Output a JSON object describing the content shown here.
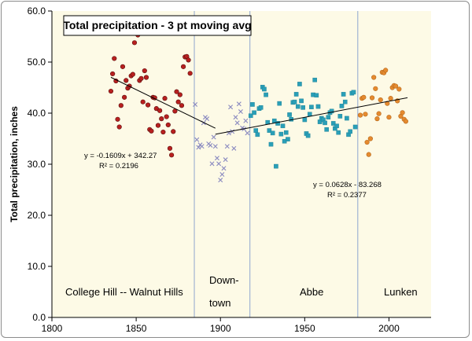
{
  "chart_data": {
    "type": "scatter",
    "title": "Total precipitation - 3 pt moving avg",
    "ylabel": "Total precipitation, inches",
    "xlabel": "",
    "xlim": [
      1800,
      2025
    ],
    "ylim": [
      0,
      60
    ],
    "xticks": [
      1800,
      1850,
      1900,
      1950,
      2000
    ],
    "yticks": [
      "0.0",
      "10.0",
      "20.0",
      "30.0",
      "40.0",
      "50.0",
      "60.0"
    ],
    "grid": false,
    "colors": {
      "plot_background": "#fdfae6",
      "era_divider": "#8ea6cf",
      "trendline": "#000000"
    },
    "eras": [
      {
        "name": "College Hill -- Walnut Hills",
        "start": 1800,
        "end": 1884.5
      },
      {
        "name": "Down-town",
        "start": 1884.5,
        "end": 1917.5
      },
      {
        "name": "Abbe",
        "start": 1917.5,
        "end": 1981.5
      },
      {
        "name": "Lunken",
        "start": 1981.5,
        "end": 2025
      }
    ],
    "era_labels": [
      "College Hill -- Walnut Hills",
      "Down-",
      "town",
      "Abbe",
      "Lunken"
    ],
    "series": [
      {
        "marker": "circle",
        "color": "#b8201f",
        "edge": "#5a0f0f",
        "points": [
          [
            1835,
            44.3
          ],
          [
            1836,
            47.7
          ],
          [
            1837,
            50.7
          ],
          [
            1838,
            46.3
          ],
          [
            1839,
            38.8
          ],
          [
            1840,
            37.3
          ],
          [
            1841,
            41.5
          ],
          [
            1842,
            49.1
          ],
          [
            1843,
            43.1
          ],
          [
            1844,
            46.4
          ],
          [
            1845,
            44.9
          ],
          [
            1846,
            45.3
          ],
          [
            1847,
            47.3
          ],
          [
            1848,
            47.6
          ],
          [
            1849,
            53.8
          ],
          [
            1850,
            55.6
          ],
          [
            1851,
            55.3
          ],
          [
            1852,
            46.4
          ],
          [
            1853,
            46.8
          ],
          [
            1854,
            42.2
          ],
          [
            1855,
            48.3
          ],
          [
            1856,
            47.0
          ],
          [
            1857,
            41.6
          ],
          [
            1858,
            36.8
          ],
          [
            1859,
            36.5
          ],
          [
            1860,
            43.1
          ],
          [
            1861,
            43.0
          ],
          [
            1862,
            40.9
          ],
          [
            1863,
            37.6
          ],
          [
            1864,
            40.5
          ],
          [
            1865,
            38.9
          ],
          [
            1866,
            36.3
          ],
          [
            1867,
            42.9
          ],
          [
            1868,
            39.3
          ],
          [
            1869,
            37.7
          ],
          [
            1870,
            33.1
          ],
          [
            1871,
            31.8
          ],
          [
            1872,
            36.4
          ],
          [
            1873,
            40.4
          ],
          [
            1874,
            44.2
          ],
          [
            1875,
            42.2
          ],
          [
            1876,
            43.6
          ],
          [
            1877,
            41.5
          ],
          [
            1878,
            49.1
          ],
          [
            1879,
            51.0
          ],
          [
            1880,
            51.1
          ],
          [
            1881,
            50.4
          ],
          [
            1882,
            47.8
          ]
        ]
      },
      {
        "marker": "cross",
        "color": "#8a8ac0",
        "edge": "#8a8ac0",
        "points": [
          [
            1885,
            41.7
          ],
          [
            1886,
            34.8
          ],
          [
            1887,
            33.3
          ],
          [
            1888,
            33.8
          ],
          [
            1889,
            33.5
          ],
          [
            1890,
            38.1
          ],
          [
            1891,
            39.2
          ],
          [
            1892,
            38.9
          ],
          [
            1893,
            34.0
          ],
          [
            1894,
            33.7
          ],
          [
            1895,
            30.1
          ],
          [
            1896,
            35.3
          ],
          [
            1897,
            33.5
          ],
          [
            1898,
            31.2
          ],
          [
            1899,
            30.1
          ],
          [
            1900,
            26.9
          ],
          [
            1901,
            28.0
          ],
          [
            1902,
            29.2
          ],
          [
            1903,
            30.9
          ],
          [
            1904,
            33.5
          ],
          [
            1905,
            36.1
          ],
          [
            1906,
            41.2
          ],
          [
            1907,
            36.4
          ],
          [
            1908,
            33.1
          ],
          [
            1909,
            39.2
          ],
          [
            1910,
            38.1
          ],
          [
            1911,
            41.8
          ],
          [
            1912,
            40.3
          ],
          [
            1913,
            37.1
          ],
          [
            1914,
            36.9
          ],
          [
            1915,
            38.5
          ],
          [
            1916,
            36.1
          ]
        ]
      },
      {
        "marker": "square",
        "color": "#2a9fb7",
        "edge": "#1c7f94",
        "points": [
          [
            1918,
            39.5
          ],
          [
            1919,
            41.7
          ],
          [
            1920,
            40.1
          ],
          [
            1921,
            36.6
          ],
          [
            1922,
            35.8
          ],
          [
            1923,
            40.9
          ],
          [
            1924,
            41.1
          ],
          [
            1925,
            45.1
          ],
          [
            1926,
            44.7
          ],
          [
            1927,
            43.6
          ],
          [
            1928,
            38.2
          ],
          [
            1929,
            36.6
          ],
          [
            1930,
            33.9
          ],
          [
            1931,
            36.1
          ],
          [
            1932,
            38.5
          ],
          [
            1933,
            29.6
          ],
          [
            1934,
            38.0
          ],
          [
            1935,
            41.9
          ],
          [
            1936,
            35.9
          ],
          [
            1937,
            37.5
          ],
          [
            1938,
            34.5
          ],
          [
            1939,
            36.2
          ],
          [
            1940,
            34.9
          ],
          [
            1941,
            39.7
          ],
          [
            1942,
            38.8
          ],
          [
            1943,
            42.1
          ],
          [
            1944,
            42.2
          ],
          [
            1945,
            43.7
          ],
          [
            1946,
            41.3
          ],
          [
            1947,
            45.7
          ],
          [
            1948,
            42.4
          ],
          [
            1949,
            41.1
          ],
          [
            1950,
            38.7
          ],
          [
            1951,
            36.0
          ],
          [
            1952,
            35.6
          ],
          [
            1953,
            39.8
          ],
          [
            1954,
            41.2
          ],
          [
            1955,
            43.6
          ],
          [
            1956,
            46.5
          ],
          [
            1957,
            43.5
          ],
          [
            1958,
            41.3
          ],
          [
            1959,
            38.3
          ],
          [
            1960,
            39.0
          ],
          [
            1961,
            38.7
          ],
          [
            1962,
            38.1
          ],
          [
            1963,
            36.8
          ],
          [
            1964,
            39.2
          ],
          [
            1965,
            40.1
          ],
          [
            1966,
            40.4
          ],
          [
            1967,
            38.0
          ],
          [
            1968,
            37.0
          ],
          [
            1969,
            37.5
          ],
          [
            1970,
            36.2
          ],
          [
            1971,
            39.4
          ],
          [
            1972,
            41.4
          ],
          [
            1973,
            43.7
          ],
          [
            1974,
            42.2
          ],
          [
            1975,
            39.0
          ],
          [
            1976,
            35.8
          ],
          [
            1977,
            36.4
          ],
          [
            1978,
            43.9
          ],
          [
            1979,
            44.1
          ],
          [
            1980,
            37.3
          ]
        ]
      },
      {
        "marker": "circle",
        "color": "#e58a2f",
        "edge": "#b66a1d",
        "points": [
          [
            1983,
            39.6
          ],
          [
            1984,
            42.9
          ],
          [
            1985,
            43.1
          ],
          [
            1986,
            39.8
          ],
          [
            1987,
            34.3
          ],
          [
            1988,
            31.9
          ],
          [
            1989,
            35.0
          ],
          [
            1990,
            43.0
          ],
          [
            1991,
            47.0
          ],
          [
            1992,
            44.8
          ],
          [
            1993,
            38.9
          ],
          [
            1994,
            39.9
          ],
          [
            1995,
            42.6
          ],
          [
            1996,
            48.0
          ],
          [
            1997,
            47.9
          ],
          [
            1998,
            48.4
          ],
          [
            1999,
            41.9
          ],
          [
            2000,
            39.2
          ],
          [
            2001,
            42.9
          ],
          [
            2002,
            45.0
          ],
          [
            2003,
            45.4
          ],
          [
            2004,
            45.3
          ],
          [
            2005,
            42.4
          ],
          [
            2006,
            44.7
          ],
          [
            2007,
            39.4
          ],
          [
            2008,
            40.1
          ],
          [
            2009,
            38.8
          ],
          [
            2010,
            38.4
          ]
        ]
      }
    ],
    "trendlines": [
      {
        "equation": "y = -0.1609x + 342.27",
        "r2": "R² = 0.2196",
        "slope": -0.1609,
        "intercept": 342.27,
        "x_range": [
          1835,
          1897
        ]
      },
      {
        "equation": "y = 0.0628x - 83.268",
        "r2": "R² = 0.2377",
        "slope": 0.0628,
        "intercept": -83.268,
        "x_range": [
          1897,
          2011
        ]
      }
    ]
  }
}
